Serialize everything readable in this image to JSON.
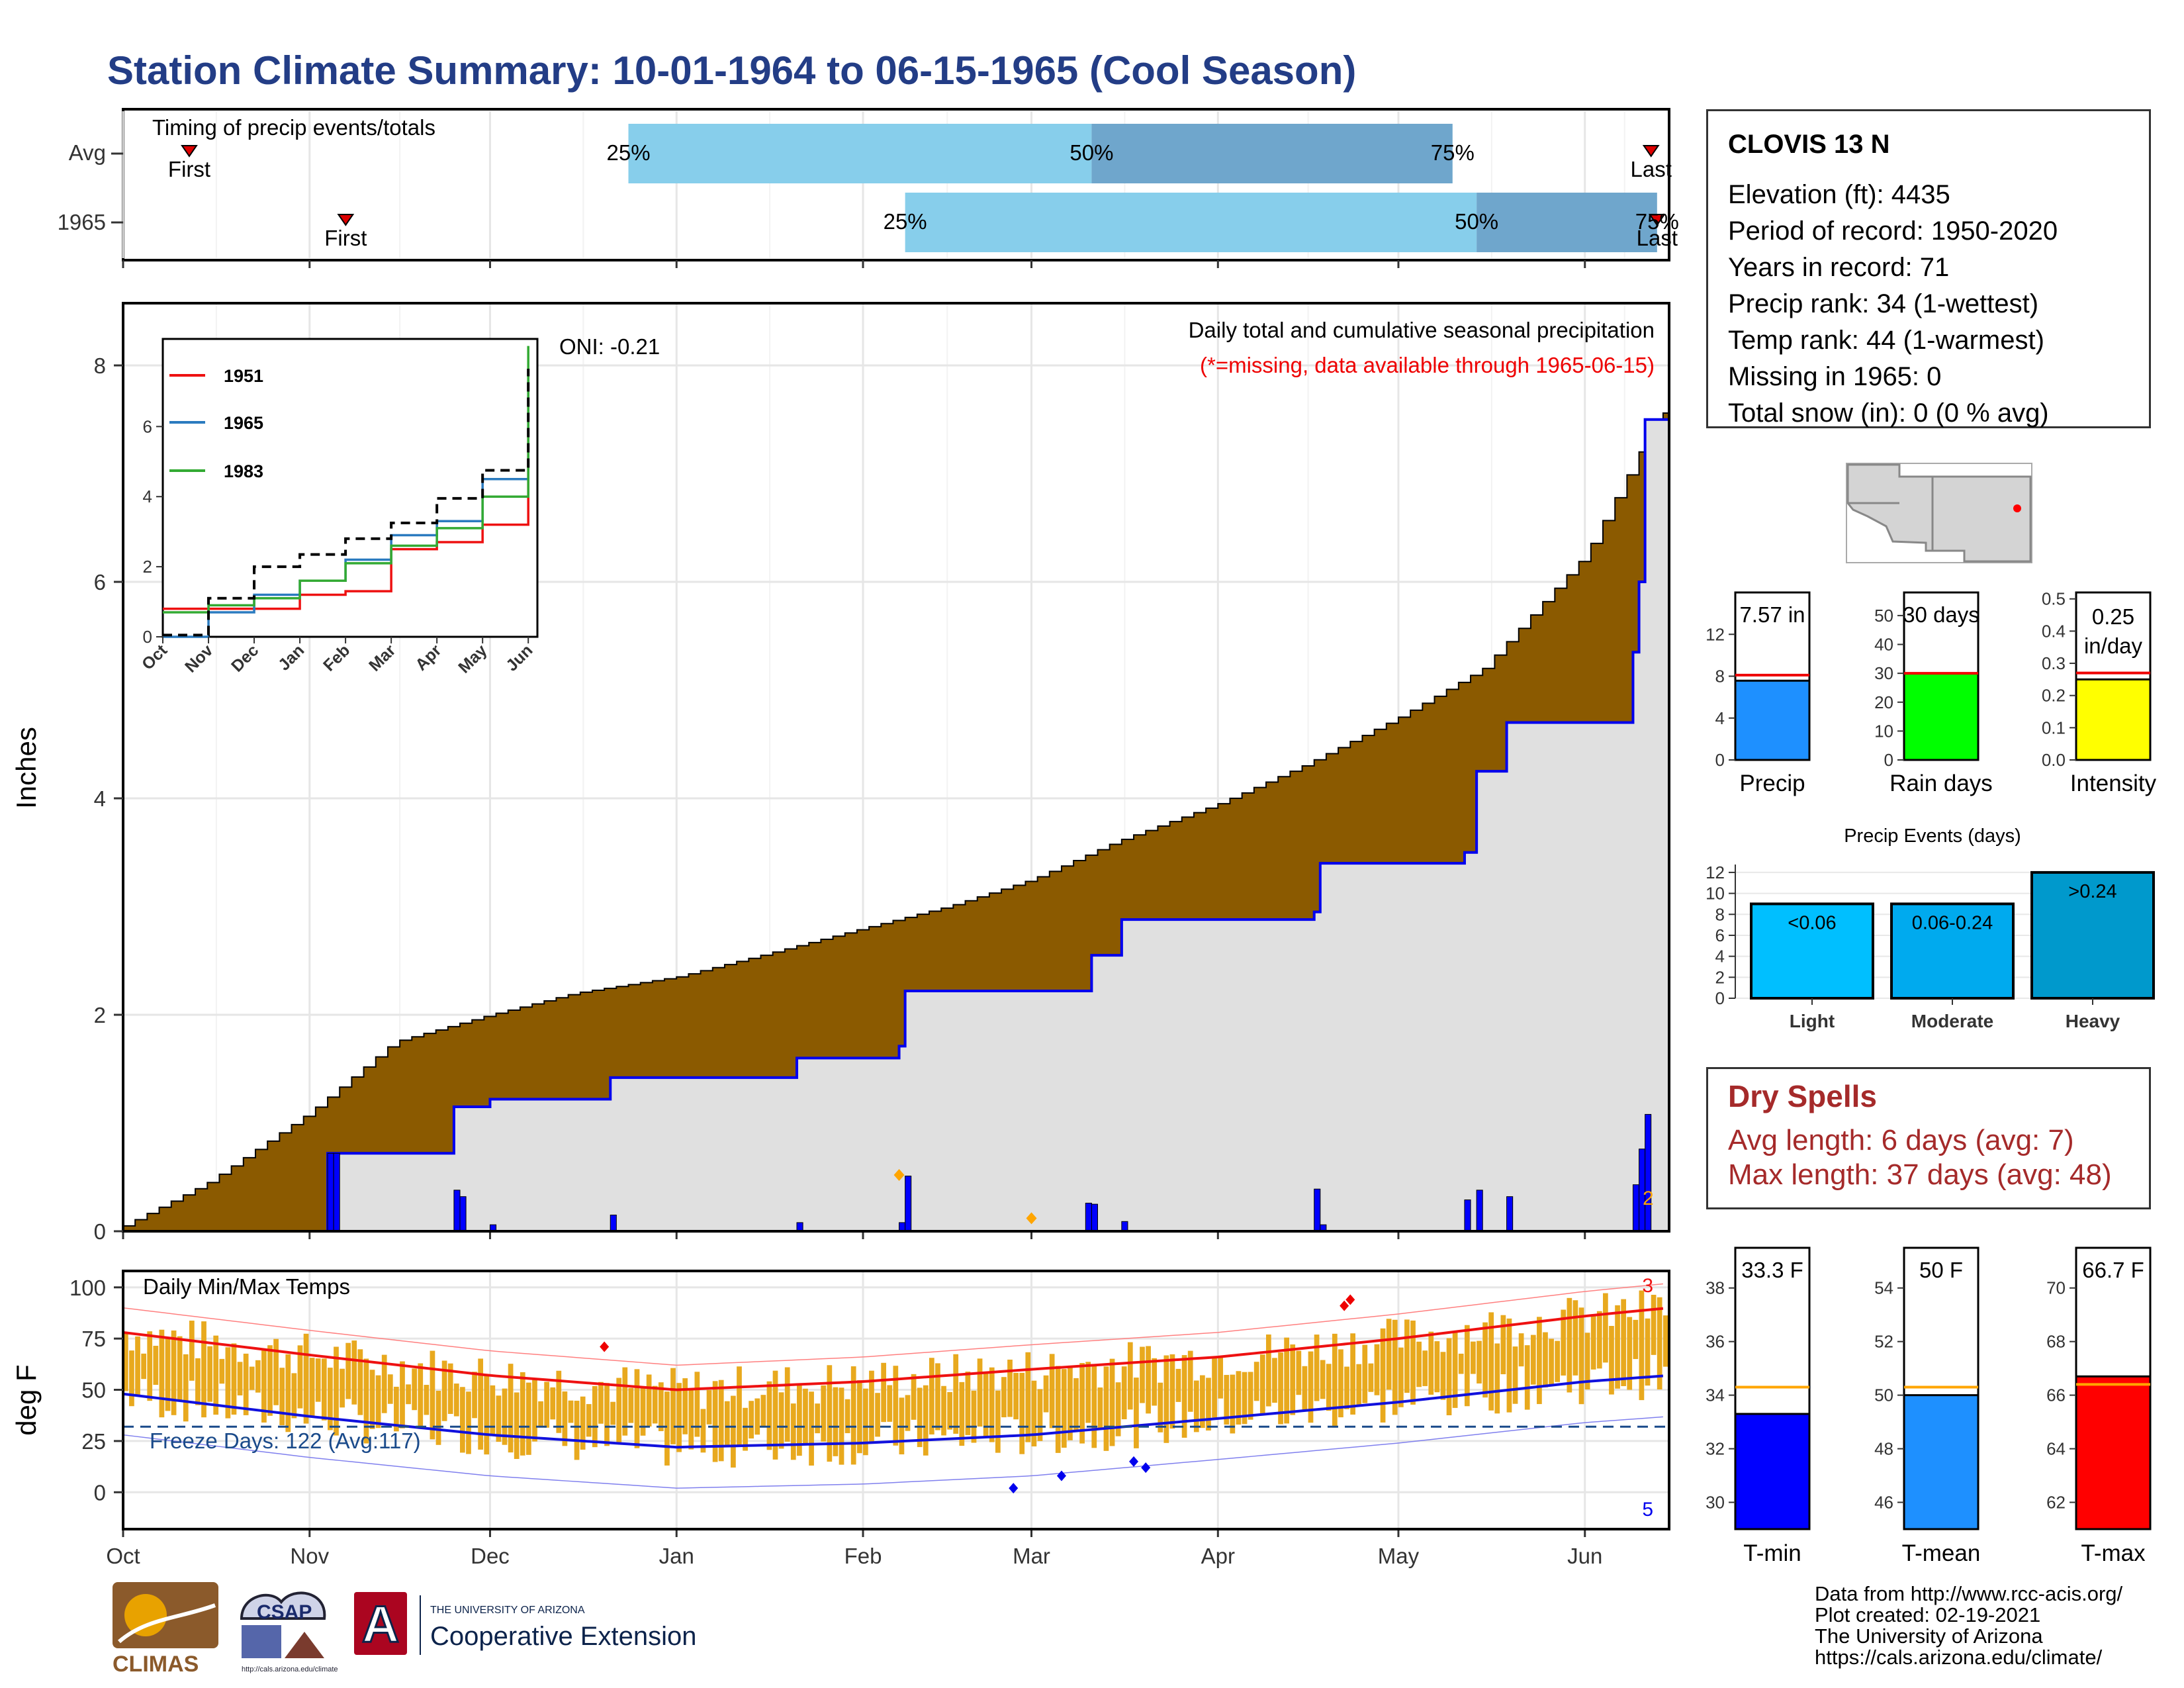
{
  "title": "Station Climate Summary: 10-01-1964 to 06-15-1965 (Cool Season)",
  "station": {
    "name": "CLOVIS 13 N",
    "lines": [
      "Elevation (ft): 4435",
      "Period of record: 1950-2020",
      "Years in record: 71",
      "Precip rank: 34 (1-wettest)",
      "Temp rank: 44 (1-warmest)",
      "Missing in 1965: 0",
      "Total snow (in): 0 (0 % avg)"
    ]
  },
  "timing": {
    "title": "Timing of precip events/totals",
    "rows": [
      "Avg",
      "1965"
    ],
    "avg": {
      "first": "10-12",
      "q25": "12-24",
      "q50": "03-11",
      "q75": "05-10",
      "last": "06-12"
    },
    "y1965": {
      "first": "11-07",
      "q25": "02-08",
      "q50": "05-14",
      "last": "06-13"
    },
    "labels": {
      "first": "First",
      "last": "Last",
      "q25": "25%",
      "q50": "50%",
      "q75": "75%"
    }
  },
  "precip": {
    "ylabel": "Inches",
    "annotation": "Daily total and cumulative seasonal precipitation",
    "missing_note": "(*=missing, data available through 1965-06-15)",
    "oni": "ONI: -0.21",
    "yticks": [
      "0",
      "2",
      "4",
      "6",
      "8"
    ],
    "count_label": "2",
    "colors": {
      "avg_fill": "#8b5a00",
      "season_line": "#0000ee",
      "season_fill": "#e0e0e0",
      "daily_bar": "#0000ff",
      "marker": "#ffa500"
    }
  },
  "inset": {
    "legend": [
      {
        "label": "1951",
        "color": "#ee1111"
      },
      {
        "label": "1965",
        "color": "#2b7bbf"
      },
      {
        "label": "1983",
        "color": "#33aa33"
      }
    ],
    "yticks": [
      "0",
      "2",
      "4",
      "6"
    ],
    "xticks": [
      "Oct",
      "Nov",
      "Dec",
      "Jan",
      "Feb",
      "Mar",
      "Apr",
      "May",
      "Jun"
    ]
  },
  "temps": {
    "title": "Daily Min/Max Temps",
    "ylabel": "deg F",
    "freeze": "Freeze Days: 122 (Avg:117)",
    "yticks": [
      "0",
      "25",
      "50",
      "75",
      "100"
    ],
    "record_high_count": "3",
    "record_low_count": "5",
    "colors": {
      "bar": "#e8a91e",
      "max_line": "#ee1111",
      "min_line": "#1111dd"
    }
  },
  "months": [
    "Oct",
    "Nov",
    "Dec",
    "Jan",
    "Feb",
    "Mar",
    "Apr",
    "May",
    "Jun"
  ],
  "summary_precip": {
    "panels": [
      {
        "name": "Precip",
        "label": "7.57 in",
        "value": 7.57,
        "avg": 8.1,
        "ymax": 16,
        "ticks": [
          "0",
          "4",
          "8",
          "12"
        ],
        "color": "#1e90ff"
      },
      {
        "name": "Rain days",
        "label": "30 days",
        "value": 30,
        "avg": 30,
        "ymax": 58,
        "ticks": [
          "0",
          "10",
          "20",
          "30",
          "40",
          "50"
        ],
        "color": "#00ff00"
      },
      {
        "name": "Intensity",
        "label_line1": "0.25",
        "label_line2": "in/day",
        "value": 0.25,
        "avg": 0.27,
        "ymax": 0.52,
        "ticks": [
          "0.0",
          "0.1",
          "0.2",
          "0.3",
          "0.4",
          "0.5"
        ],
        "color": "#ffff00"
      }
    ]
  },
  "events": {
    "title": "Precip Events (days)",
    "categories": [
      "Light",
      "Moderate",
      "Heavy"
    ],
    "bar_labels": [
      "<0.06",
      "0.06-0.24",
      ">0.24"
    ],
    "values": [
      9,
      9,
      12
    ],
    "yticks": [
      "0",
      "2",
      "4",
      "6",
      "8",
      "10",
      "12"
    ],
    "colors": [
      "#00bfff",
      "#00aaee",
      "#0099cc"
    ]
  },
  "dry_spells": {
    "title": "Dry Spells",
    "avg_length": "Avg length: 6 days (avg: 7)",
    "max_length": "Max length: 37 days (avg: 48)"
  },
  "summary_temp": {
    "panels": [
      {
        "name": "T-min",
        "label": "33.3 F",
        "value": 33.3,
        "avg": 34.3,
        "ymin": 29,
        "ymax": 39.5,
        "ticks": [
          "30",
          "32",
          "34",
          "36",
          "38"
        ],
        "color": "#0000ff"
      },
      {
        "name": "T-mean",
        "label": "50 F",
        "value": 50.0,
        "avg": 50.3,
        "ymin": 45,
        "ymax": 55.5,
        "ticks": [
          "46",
          "48",
          "50",
          "52",
          "54"
        ],
        "color": "#1e90ff"
      },
      {
        "name": "T-max",
        "label": "66.7 F",
        "value": 66.7,
        "avg": 66.4,
        "ymin": 61,
        "ymax": 71.5,
        "ticks": [
          "62",
          "64",
          "66",
          "68",
          "70"
        ],
        "color": "#ff0000"
      }
    ]
  },
  "credits": [
    "Data from http://www.rcc-acis.org/",
    "Plot created: 02-19-2021",
    "The University of Arizona",
    "https://cals.arizona.edu/climate/"
  ],
  "logos": {
    "climas": "CLIMAS",
    "csap": "CSAP",
    "csap_url": "http://cals.arizona.edu/climate",
    "ua_small": "THE UNIVERSITY OF ARIZONA",
    "ua_big": "Cooperative Extension",
    "ua_letter": "A"
  },
  "chart_data": [
    {
      "type": "line",
      "title": "Daily total and cumulative seasonal precipitation",
      "ylabel": "Inches",
      "ylim": [
        0,
        8.5
      ],
      "x_axis": "date (1964-10-01 to 1965-06-15)",
      "series": [
        {
          "name": "cumulative seasonal precipitation (1965)",
          "x": [
            "1964-10-01",
            "1964-11-04",
            "1964-11-05",
            "1964-11-25",
            "1964-12-01",
            "1964-12-21",
            "1965-01-21",
            "1965-02-07",
            "1965-02-08",
            "1965-03-10",
            "1965-03-11",
            "1965-03-16",
            "1965-04-17",
            "1965-04-18",
            "1965-05-12",
            "1965-05-14",
            "1965-05-19",
            "1965-06-09",
            "1965-06-10",
            "1965-06-11",
            "1965-06-15"
          ],
          "y": [
            0,
            0.72,
            0.72,
            1.15,
            1.22,
            1.42,
            1.6,
            1.71,
            2.22,
            2.22,
            2.55,
            2.88,
            2.95,
            3.4,
            3.5,
            4.25,
            4.7,
            5.35,
            6.0,
            7.5,
            7.57
          ]
        },
        {
          "name": "average cumulative precipitation",
          "x": [
            "1964-10-01",
            "1964-10-15",
            "1964-11-01",
            "1964-11-15",
            "1964-12-01",
            "1964-12-15",
            "1965-01-01",
            "1965-01-15",
            "1965-02-01",
            "1965-02-15",
            "1965-03-01",
            "1965-03-15",
            "1965-04-01",
            "1965-04-15",
            "1965-05-01",
            "1965-05-15",
            "1965-06-01",
            "1965-06-10",
            "1965-06-15"
          ],
          "y": [
            0.05,
            0.45,
            1.1,
            1.75,
            2.0,
            2.2,
            2.35,
            2.55,
            2.8,
            3.0,
            3.25,
            3.6,
            3.95,
            4.3,
            4.75,
            5.2,
            6.25,
            7.2,
            7.65
          ]
        },
        {
          "name": "daily precipitation (1965)",
          "x": [
            "1964-11-04",
            "1964-11-05",
            "1964-11-25",
            "1964-11-26",
            "1964-12-01",
            "1964-12-21",
            "1965-01-21",
            "1965-02-07",
            "1965-02-08",
            "1965-03-10",
            "1965-03-11",
            "1965-03-16",
            "1965-04-17",
            "1965-04-18",
            "1965-05-12",
            "1965-05-14",
            "1965-05-19",
            "1965-06-09",
            "1965-06-10",
            "1965-06-11"
          ],
          "y": [
            0.72,
            0.72,
            0.38,
            0.32,
            0.06,
            0.15,
            0.08,
            0.08,
            0.51,
            0.26,
            0.25,
            0.09,
            0.39,
            0.06,
            0.29,
            0.38,
            0.32,
            0.43,
            0.76,
            1.08
          ]
        }
      ],
      "annotations": [
        "ONI: -0.21",
        "(*=missing, data available through 1965-06-15)"
      ]
    },
    {
      "type": "line",
      "title": "inset: cumulative precipitation comparison",
      "ylim": [
        0,
        8.5
      ],
      "categories": [
        "Oct",
        "Nov",
        "Dec",
        "Jan",
        "Feb",
        "Mar",
        "Apr",
        "May",
        "Jun"
      ],
      "series": [
        {
          "name": "1951",
          "values": [
            0.8,
            0.8,
            0.8,
            1.2,
            1.3,
            2.5,
            2.7,
            3.2,
            5.7
          ]
        },
        {
          "name": "1965",
          "values": [
            0.0,
            0.7,
            1.2,
            1.6,
            2.2,
            2.9,
            3.3,
            4.5,
            7.6
          ]
        },
        {
          "name": "1983",
          "values": [
            0.7,
            0.9,
            1.1,
            1.6,
            2.1,
            2.6,
            3.1,
            4.0,
            8.3
          ]
        },
        {
          "name": "average",
          "values": [
            0.05,
            1.1,
            2.0,
            2.35,
            2.8,
            3.25,
            3.95,
            4.75,
            7.65
          ]
        }
      ]
    },
    {
      "type": "line",
      "title": "Daily Min/Max Temps",
      "ylabel": "deg F",
      "ylim": [
        -18,
        108
      ],
      "x_axis": "date (1964-10-01 to 1965-06-15)",
      "series": [
        {
          "name": "average max",
          "x": [
            "1964-10-01",
            "1964-11-01",
            "1964-12-01",
            "1965-01-01",
            "1965-02-01",
            "1965-03-01",
            "1965-04-01",
            "1965-05-01",
            "1965-06-01",
            "1965-06-15"
          ],
          "y": [
            78,
            67,
            57,
            50,
            54,
            60,
            66,
            75,
            86,
            90
          ]
        },
        {
          "name": "average min",
          "x": [
            "1964-10-01",
            "1964-11-01",
            "1964-12-01",
            "1965-01-01",
            "1965-02-01",
            "1965-03-01",
            "1965-04-01",
            "1965-05-01",
            "1965-06-01",
            "1965-06-15"
          ],
          "y": [
            48,
            37,
            28,
            22,
            24,
            28,
            36,
            44,
            54,
            57
          ]
        },
        {
          "name": "freeze line",
          "x": [
            "1964-10-01",
            "1965-06-15"
          ],
          "y": [
            32,
            32
          ]
        }
      ],
      "annotations": [
        "Freeze Days: 122 (Avg:117)"
      ]
    },
    {
      "type": "bar",
      "title": "Precip Events (days)",
      "categories": [
        "Light",
        "Moderate",
        "Heavy"
      ],
      "values": [
        9,
        9,
        12
      ],
      "bar_labels": [
        "<0.06",
        "0.06-0.24",
        ">0.24"
      ],
      "ylim": [
        0,
        12.5
      ]
    },
    {
      "type": "bar",
      "categories": [
        "Precip",
        "Rain days",
        "Intensity"
      ],
      "values": [
        7.57,
        30,
        0.25
      ],
      "bar_labels": [
        "7.57 in",
        "30 days",
        "0.25 in/day"
      ]
    },
    {
      "type": "bar",
      "categories": [
        "T-min",
        "T-mean",
        "T-max"
      ],
      "values": [
        33.3,
        50.0,
        66.7
      ],
      "bar_labels": [
        "33.3 F",
        "50 F",
        "66.7 F"
      ]
    }
  ]
}
